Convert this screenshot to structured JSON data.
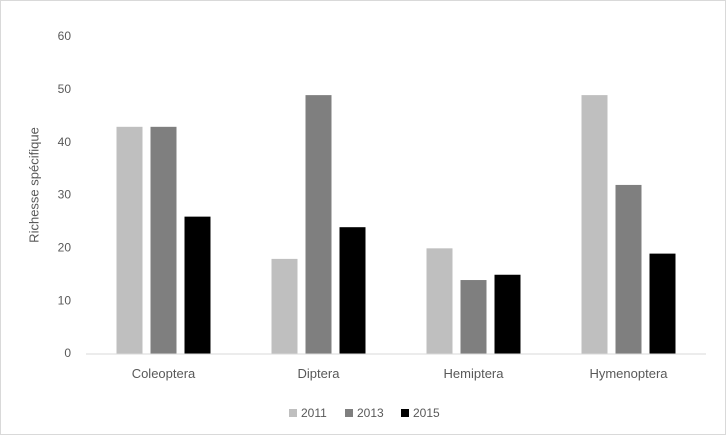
{
  "chart_data": {
    "type": "bar",
    "title": "",
    "xlabel": "",
    "ylabel": "Richesse spécifique",
    "categories": [
      "Coleoptera",
      "Diptera",
      "Hemiptera",
      "Hymenoptera"
    ],
    "series": [
      {
        "name": "2011",
        "color": "#bfbfbf",
        "values": [
          43,
          18,
          20,
          49
        ]
      },
      {
        "name": "2013",
        "color": "#7f7f7f",
        "values": [
          43,
          49,
          14,
          32
        ]
      },
      {
        "name": "2015",
        "color": "#000000",
        "values": [
          26,
          24,
          15,
          19
        ]
      }
    ],
    "ylim": [
      0,
      60
    ],
    "yticks": [
      "0",
      "10",
      "20",
      "30",
      "40",
      "50",
      "60"
    ],
    "grid": false,
    "legend": "bottom",
    "axis_color": "#d9d9d9"
  }
}
